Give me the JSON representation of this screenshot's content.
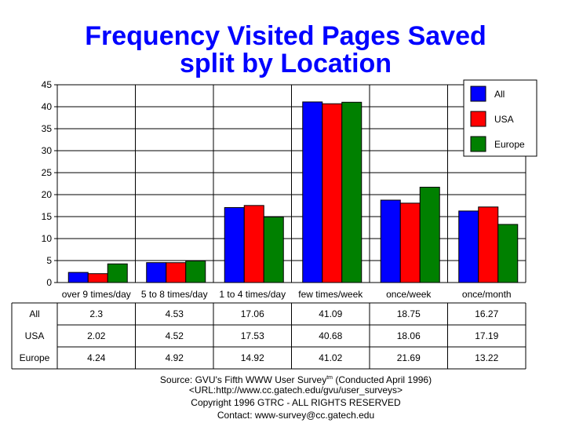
{
  "chart_data": {
    "type": "bar",
    "title_lines": [
      "Frequency Visited Pages Saved",
      "split by Location"
    ],
    "categories": [
      "over 9 times/day",
      "5 to 8 times/day",
      "1 to 4 times/day",
      "few times/week",
      "once/week",
      "once/month"
    ],
    "series": [
      {
        "name": "All",
        "color": "#0000ff",
        "values": [
          2.3,
          4.53,
          17.06,
          41.09,
          18.75,
          16.27
        ],
        "labels": [
          "2.3",
          "4.53",
          "17.06",
          "41.09",
          "18.75",
          "16.27"
        ]
      },
      {
        "name": "USA",
        "color": "#ff0000",
        "values": [
          2.02,
          4.52,
          17.53,
          40.68,
          18.06,
          17.19
        ],
        "labels": [
          "2.02",
          "4.52",
          "17.53",
          "40.68",
          "18.06",
          "17.19"
        ]
      },
      {
        "name": "Europe",
        "color": "#008000",
        "values": [
          4.24,
          4.92,
          14.92,
          41.02,
          21.69,
          13.22
        ],
        "labels": [
          "4.24",
          "4.92",
          "14.92",
          "41.02",
          "21.69",
          "13.22"
        ]
      }
    ],
    "ylim": [
      0,
      45
    ],
    "yticks": [
      "0",
      "5",
      "10",
      "15",
      "20",
      "25",
      "30",
      "35",
      "40",
      "45"
    ],
    "grid": true,
    "legend_position": "top-right"
  },
  "footer": {
    "source_prefix": "Source: GVU's Fifth WWW User Survey",
    "source_sup": "tm",
    "source_suffix": " (Conducted April 1996)",
    "url": "<URL:http://www.cc.gatech.edu/gvu/user_surveys>",
    "copyright": "Copyright 1996 GTRC -  ALL RIGHTS RESERVED",
    "contact": "Contact: www-survey@cc.gatech.edu"
  }
}
